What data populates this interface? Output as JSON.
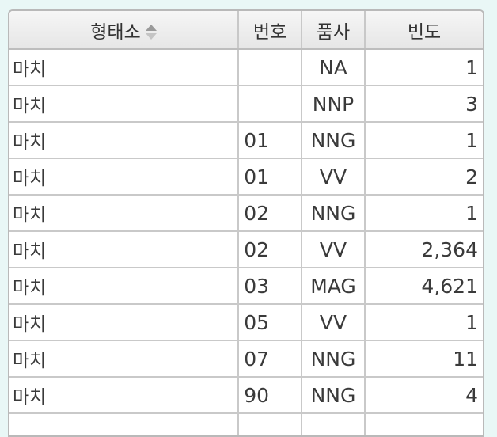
{
  "table": {
    "headers": {
      "morpheme": "형태소",
      "number": "번호",
      "pos": "품사",
      "frequency": "빈도"
    },
    "sort_icon": "sort-up-down-icon",
    "rows": [
      {
        "morpheme": "마치",
        "number": "",
        "pos": "NA",
        "frequency": "1"
      },
      {
        "morpheme": "마치",
        "number": "",
        "pos": "NNP",
        "frequency": "3"
      },
      {
        "morpheme": "마치",
        "number": "01",
        "pos": "NNG",
        "frequency": "1"
      },
      {
        "morpheme": "마치",
        "number": "01",
        "pos": "VV",
        "frequency": "2"
      },
      {
        "morpheme": "마치",
        "number": "02",
        "pos": "NNG",
        "frequency": "1"
      },
      {
        "morpheme": "마치",
        "number": "02",
        "pos": "VV",
        "frequency": "2,364"
      },
      {
        "morpheme": "마치",
        "number": "03",
        "pos": "MAG",
        "frequency": "4,621"
      },
      {
        "morpheme": "마치",
        "number": "05",
        "pos": "VV",
        "frequency": "1"
      },
      {
        "morpheme": "마치",
        "number": "07",
        "pos": "NNG",
        "frequency": "11"
      },
      {
        "morpheme": "마치",
        "number": "90",
        "pos": "NNG",
        "frequency": "4"
      }
    ]
  }
}
